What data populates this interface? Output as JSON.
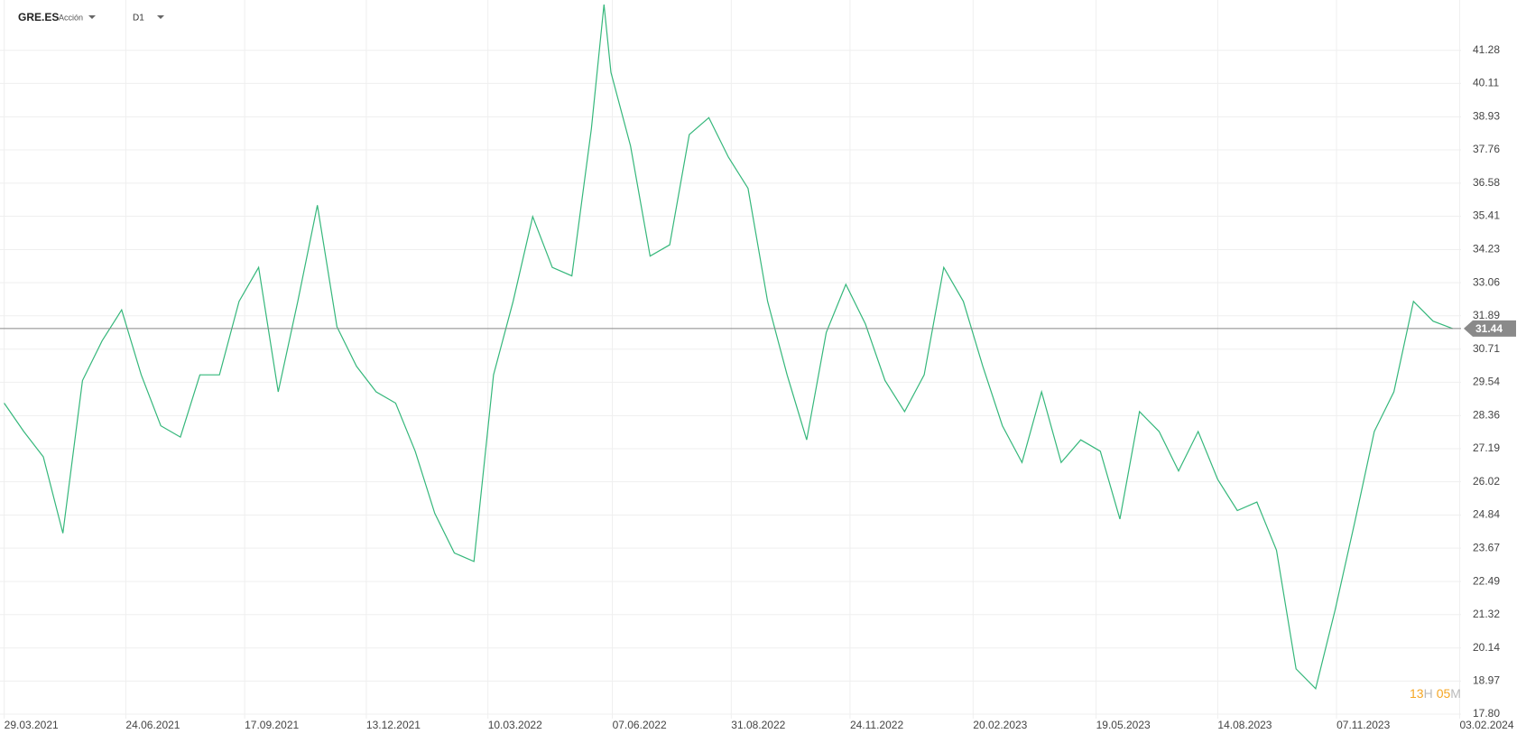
{
  "header": {
    "symbol": "GRE.ES",
    "asset_type": "Acción",
    "timeframe": "D1"
  },
  "chart_data": {
    "type": "line",
    "x": [
      "2021-03-29",
      "2021-04-12",
      "2021-04-26",
      "2021-05-10",
      "2021-05-24",
      "2021-06-07",
      "2021-06-21",
      "2021-07-05",
      "2021-07-19",
      "2021-08-02",
      "2021-08-16",
      "2021-08-30",
      "2021-09-13",
      "2021-09-27",
      "2021-10-11",
      "2021-10-25",
      "2021-11-08",
      "2021-11-22",
      "2021-12-06",
      "2021-12-20",
      "2022-01-03",
      "2022-01-17",
      "2022-01-31",
      "2022-02-14",
      "2022-02-28",
      "2022-03-14",
      "2022-03-28",
      "2022-04-11",
      "2022-04-25",
      "2022-05-09",
      "2022-05-23",
      "2022-06-01",
      "2022-06-06",
      "2022-06-20",
      "2022-07-04",
      "2022-07-18",
      "2022-08-01",
      "2022-08-15",
      "2022-08-29",
      "2022-09-12",
      "2022-09-26",
      "2022-10-10",
      "2022-10-24",
      "2022-11-07",
      "2022-11-21",
      "2022-12-05",
      "2022-12-19",
      "2023-01-02",
      "2023-01-16",
      "2023-01-30",
      "2023-02-13",
      "2023-02-27",
      "2023-03-13",
      "2023-03-27",
      "2023-04-10",
      "2023-04-24",
      "2023-05-08",
      "2023-05-22",
      "2023-06-05",
      "2023-06-19",
      "2023-07-03",
      "2023-07-17",
      "2023-07-31",
      "2023-08-14",
      "2023-08-28",
      "2023-09-11",
      "2023-09-25",
      "2023-10-09",
      "2023-10-23",
      "2023-11-06",
      "2023-11-20",
      "2023-12-04",
      "2023-12-18",
      "2024-01-01",
      "2024-01-15",
      "2024-01-29"
    ],
    "series": [
      {
        "color": "#35b77b",
        "values": [
          28.8,
          27.8,
          26.9,
          24.2,
          29.6,
          31.0,
          32.1,
          29.8,
          28.0,
          27.6,
          29.8,
          29.8,
          32.4,
          33.6,
          29.2,
          32.4,
          35.8,
          31.5,
          30.1,
          29.2,
          28.8,
          27.1,
          24.9,
          23.5,
          23.2,
          29.8,
          32.4,
          35.4,
          33.6,
          33.3,
          38.5,
          42.9,
          40.5,
          37.9,
          34.0,
          34.4,
          38.3,
          38.9,
          37.5,
          36.4,
          32.4,
          29.8,
          27.5,
          31.3,
          33.0,
          31.6,
          29.6,
          28.5,
          29.8,
          33.6,
          32.4,
          30.1,
          28.0,
          26.7,
          29.2,
          26.7,
          27.5,
          27.1,
          24.7,
          28.5,
          27.8,
          26.4,
          27.8,
          26.1,
          25.0,
          25.3,
          23.6,
          19.4,
          18.7,
          21.5,
          24.6,
          27.8,
          29.2,
          32.4,
          31.7,
          31.44
        ]
      }
    ],
    "xlim": [
      "2021-03-26",
      "2024-02-04"
    ],
    "xticks": [
      {
        "value": "2021-03-29",
        "label": "29.03.2021"
      },
      {
        "value": "2021-06-24",
        "label": "24.06.2021"
      },
      {
        "value": "2021-09-17",
        "label": "17.09.2021"
      },
      {
        "value": "2021-12-13",
        "label": "13.12.2021"
      },
      {
        "value": "2022-03-10",
        "label": "10.03.2022"
      },
      {
        "value": "2022-06-07",
        "label": "07.06.2022"
      },
      {
        "value": "2022-08-31",
        "label": "31.08.2022"
      },
      {
        "value": "2022-11-24",
        "label": "24.11.2022"
      },
      {
        "value": "2023-02-20",
        "label": "20.02.2023"
      },
      {
        "value": "2023-05-19",
        "label": "19.05.2023"
      },
      {
        "value": "2023-08-14",
        "label": "14.08.2023"
      },
      {
        "value": "2023-11-07",
        "label": "07.11.2023"
      },
      {
        "value": "2024-02-03",
        "label": "03.02.2024"
      }
    ],
    "ylim": [
      17.64,
      43.06
    ],
    "yticks": [
      41.28,
      40.11,
      38.93,
      37.76,
      36.58,
      35.41,
      34.23,
      33.06,
      31.89,
      30.71,
      29.54,
      28.36,
      27.19,
      26.02,
      24.84,
      23.67,
      22.49,
      21.32,
      20.14,
      18.97,
      {
        "value": 17.8,
        "label": "17.80"
      }
    ],
    "grid": true,
    "last_price": 31.44
  },
  "countdown": {
    "hours": "13",
    "hours_unit": "H",
    "minutes": "05",
    "minutes_unit": "M"
  }
}
